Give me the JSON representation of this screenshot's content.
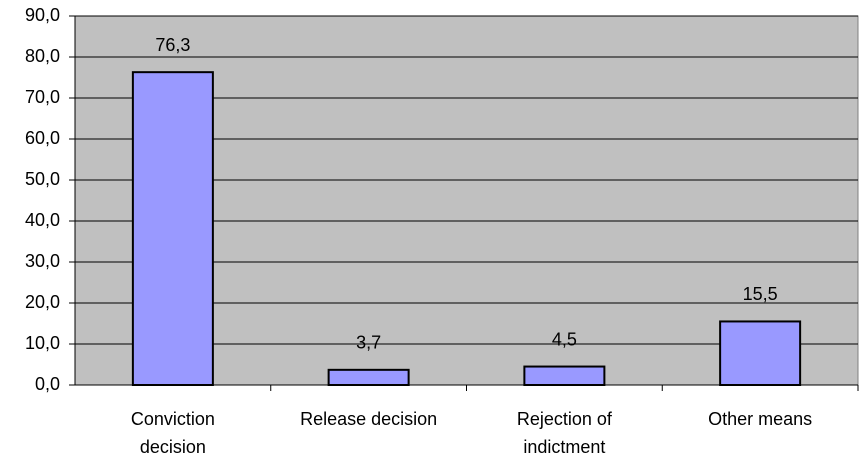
{
  "chart_data": {
    "type": "bar",
    "categories": [
      "Conviction decision",
      "Release decision",
      "Rejection of indictment",
      "Other means"
    ],
    "values": [
      76.3,
      3.7,
      4.5,
      15.5
    ],
    "value_labels": [
      "76,3",
      "3,7",
      "4,5",
      "15,5"
    ],
    "color": "#9999ff",
    "ylim": [
      0,
      90
    ],
    "yticks": [
      {
        "value": 0,
        "label": "0,0"
      },
      {
        "value": 10,
        "label": "10,0"
      },
      {
        "value": 20,
        "label": "20,0"
      },
      {
        "value": 30,
        "label": "30,0"
      },
      {
        "value": 40,
        "label": "40,0"
      },
      {
        "value": 50,
        "label": "50,0"
      },
      {
        "value": 60,
        "label": "60,0"
      },
      {
        "value": 70,
        "label": "70,0"
      },
      {
        "value": 80,
        "label": "80,0"
      },
      {
        "value": 90,
        "label": "90,0"
      }
    ],
    "grid": true
  }
}
